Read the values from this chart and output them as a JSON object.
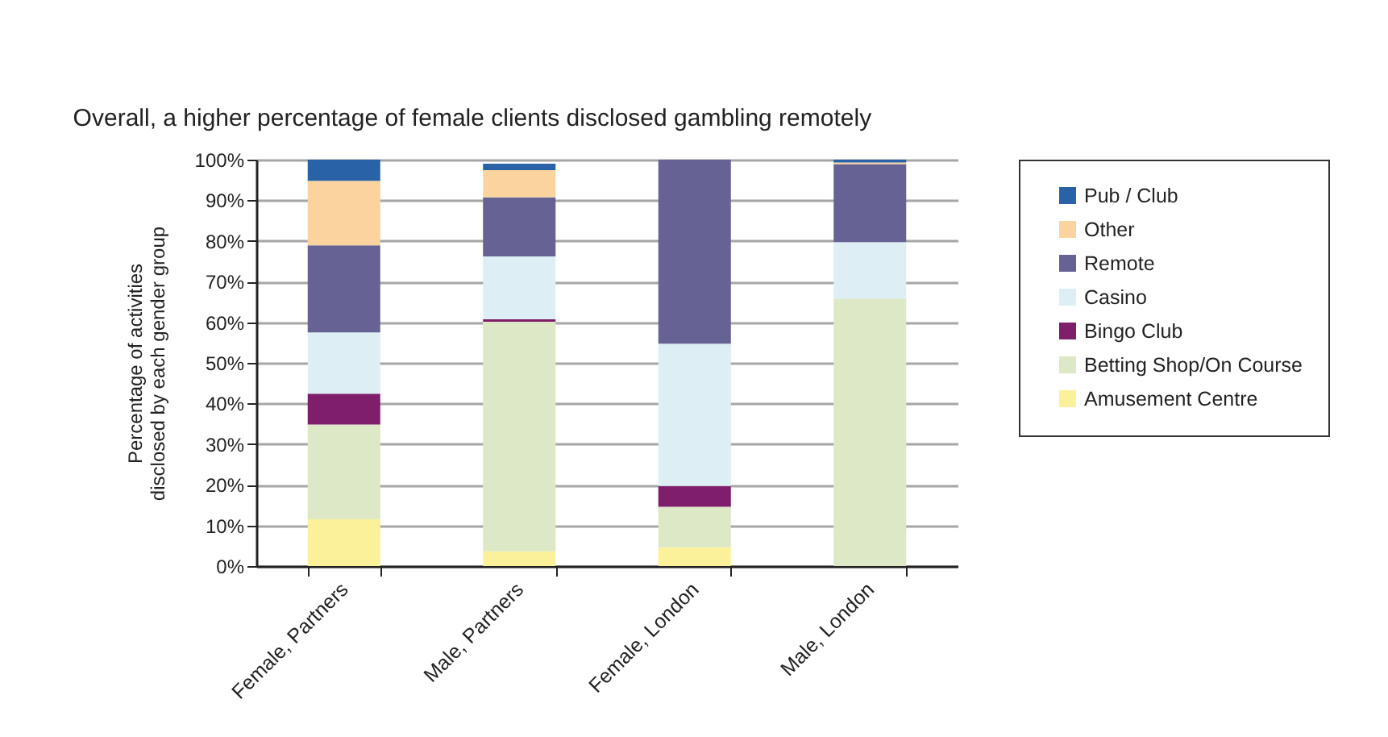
{
  "chart_data": {
    "type": "bar",
    "stacked": true,
    "title": "Overall, a higher percentage of female clients disclosed gambling remotely",
    "ylabel": "Percentage of activities disclosed by each gender group",
    "categories": [
      "Female, Partners",
      "Male, Partners",
      "Female, London",
      "Male, London"
    ],
    "series": [
      {
        "name": "Amusement Centre",
        "color": "#fbf19a",
        "values": [
          11.5,
          3.6,
          4.6,
          null
        ]
      },
      {
        "name": "Betting Shop/On Course",
        "color": "#dce8c6",
        "values": [
          23.3,
          56.5,
          10.0,
          65.8
        ]
      },
      {
        "name": "Bingo Club",
        "color": "#7f1e6b",
        "values": [
          7.6,
          0.6,
          5.1,
          null
        ]
      },
      {
        "name": "Casino",
        "color": "#ddeef5",
        "values": [
          15.1,
          15.5,
          35.0,
          13.9
        ]
      },
      {
        "name": "Remote",
        "color": "#666394",
        "values": [
          21.4,
          14.5,
          45.3,
          19.2
        ]
      },
      {
        "name": "Other",
        "color": "#fbd39e",
        "values": [
          15.9,
          6.7,
          null,
          0.4
        ]
      },
      {
        "name": "Pub / Club",
        "color": "#2a62a8",
        "values": [
          5.2,
          1.6,
          null,
          0.7
        ]
      }
    ],
    "ylim": [
      0,
      100
    ],
    "yticks": [
      {
        "value": 0,
        "label": "0%"
      },
      {
        "value": 10,
        "label": "10%"
      },
      {
        "value": 20,
        "label": "20%"
      },
      {
        "value": 30,
        "label": "30%"
      },
      {
        "value": 40,
        "label": "40%"
      },
      {
        "value": 50,
        "label": "50%"
      },
      {
        "value": 60,
        "label": "60%"
      },
      {
        "value": 70,
        "label": "70%"
      },
      {
        "value": 80,
        "label": "80%"
      },
      {
        "value": 90,
        "label": "90%"
      },
      {
        "value": 100,
        "label": "100%"
      }
    ],
    "grid": "y",
    "legend": "right"
  }
}
